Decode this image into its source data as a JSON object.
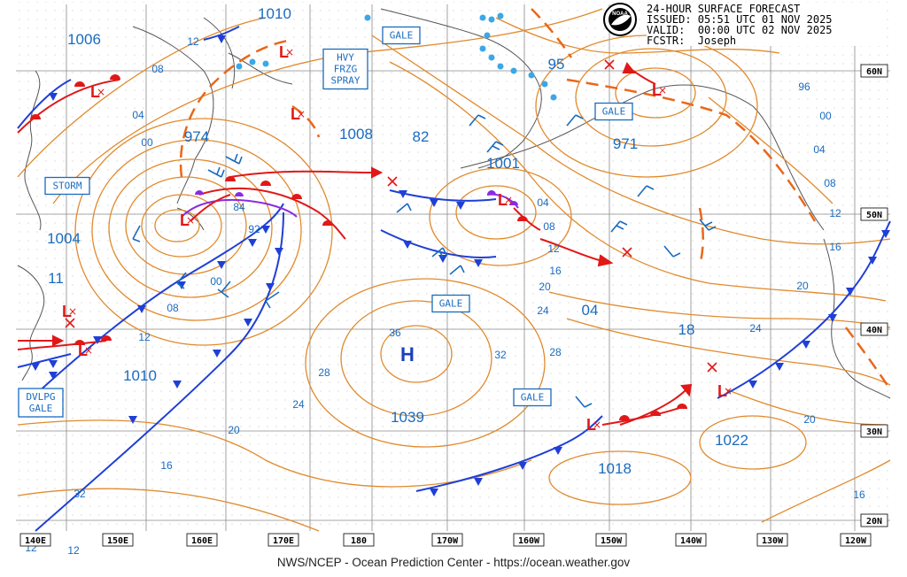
{
  "header": {
    "title": "24-HOUR SURFACE FORECAST",
    "issued": "ISSUED: 05:51 UTC 01 NOV 2025",
    "valid": "VALID:  00:00 UTC 02 NOV 2025",
    "forecaster": "FCSTR:  Joseph"
  },
  "footer": "NWS/NCEP - Ocean Prediction Center - https://ocean.weather.gov",
  "logo_text": "NOAA",
  "colors": {
    "isobar": "#e08a2c",
    "label_blue": "#1a6bbf",
    "cold_front": "#1f3fd6",
    "warm_front": "#e01818",
    "occluded_front": "#8a2be2",
    "low_marker": "#e01818",
    "high_marker": "#1a3fbf",
    "ice_edge": "#3aa8e8"
  },
  "lat_labels": [
    "60N",
    "50N",
    "40N",
    "30N",
    "20N"
  ],
  "lon_labels": [
    "140E",
    "150E",
    "160E",
    "170E",
    "180",
    "170W",
    "160W",
    "150W",
    "140W",
    "130W",
    "120W"
  ],
  "pressure_centers": [
    "1010",
    "1006",
    "974",
    "1008",
    "82",
    "1001",
    "95",
    "971",
    "1004",
    "11",
    "1010",
    "1039",
    "18",
    "04",
    "1022",
    "1018"
  ],
  "isobar_labels": [
    "12",
    "08",
    "04",
    "00",
    "84",
    "92",
    "00",
    "08",
    "12",
    "36",
    "32",
    "28",
    "24",
    "20",
    "16",
    "32",
    "28",
    "04",
    "08",
    "12",
    "16",
    "20",
    "24",
    "96",
    "00",
    "04",
    "08",
    "12",
    "16",
    "20",
    "24",
    "20",
    "16",
    "12",
    "12"
  ],
  "warnings": [
    "GALE",
    "HVY\nFRZG\nSPRAY",
    "STORM",
    "GALE",
    "GALE",
    "GALE",
    "DVLPG\nGALE"
  ],
  "high_symbol": "H",
  "low_symbol": "L"
}
